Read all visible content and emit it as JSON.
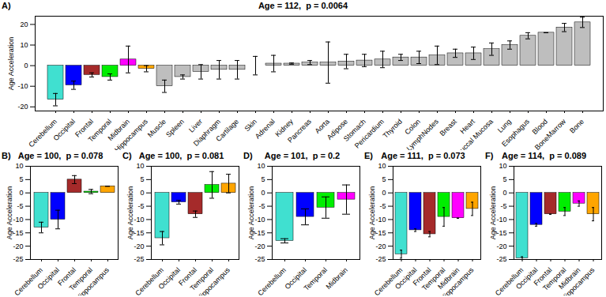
{
  "chart_data": [
    {
      "type": "bar",
      "annotation": "A)",
      "title": "Age = 112,  p = 0.0064",
      "y_label": "Age Acceleration",
      "categories": [
        "Cerebellum",
        "Occipital",
        "Frontal",
        "Temporal",
        "Midbrain",
        "Hippocampus",
        "Muscle",
        "Spleen",
        "Liver",
        "Diaphragm",
        "Cartilage",
        "Skin",
        "Adrenal",
        "Kidney",
        "Pancreas",
        "Aorta",
        "Adipose",
        "Stomach",
        "Pericardium",
        "Thyroid",
        "Colon",
        "LymphNodes",
        "Breast",
        "Heart",
        "Buccal Mucosa",
        "Lung",
        "Esophagus",
        "Blood",
        "BoneMarrow",
        "Bone"
      ],
      "values": [
        -16.5,
        -9.5,
        -4.5,
        -5.5,
        3,
        -1.5,
        -10,
        -5.5,
        -3,
        -2,
        -2,
        0,
        1,
        1,
        1.5,
        1.5,
        2,
        2.5,
        3,
        4,
        4,
        5,
        6,
        6,
        8,
        10,
        14.5,
        16,
        18.5,
        21
      ],
      "errors": [
        3,
        2,
        1,
        1.5,
        6.5,
        1.5,
        3,
        1,
        3.5,
        4.5,
        4.5,
        4.5,
        4,
        0.3,
        1,
        10,
        3.5,
        3,
        4,
        1.5,
        3,
        4.5,
        2,
        3,
        3,
        2,
        1.5,
        0,
        2,
        2.5
      ],
      "colors": [
        "#40E0D0",
        "#0000FF",
        "#A52A2A",
        "#00EE00",
        "#FF00FF",
        "#FFA500",
        "#BEBEBE",
        "#BEBEBE",
        "#BEBEBE",
        "#BEBEBE",
        "#BEBEBE",
        "#BEBEBE",
        "#BEBEBE",
        "#BEBEBE",
        "#BEBEBE",
        "#BEBEBE",
        "#BEBEBE",
        "#BEBEBE",
        "#BEBEBE",
        "#BEBEBE",
        "#BEBEBE",
        "#BEBEBE",
        "#BEBEBE",
        "#BEBEBE",
        "#BEBEBE",
        "#BEBEBE",
        "#BEBEBE",
        "#BEBEBE",
        "#BEBEBE",
        "#BEBEBE"
      ],
      "ylim": [
        -22,
        24
      ],
      "yticks": [
        -20,
        -10,
        0,
        10,
        20
      ]
    },
    {
      "type": "bar",
      "annotation": "B)",
      "title": "Age = 100,  p = 0.078",
      "y_label": "Age Acceleration",
      "categories": [
        "Cerebellum",
        "Occipital",
        "Frontal",
        "Temporal",
        "Hippocampus"
      ],
      "values": [
        -13,
        -10,
        5,
        0.5,
        2.5
      ],
      "errors": [
        2,
        3.5,
        1.5,
        0.8,
        0
      ],
      "colors": [
        "#40E0D0",
        "#0000FF",
        "#A52A2A",
        "#00EE00",
        "#FFA500"
      ],
      "ylim": [
        -25,
        10
      ],
      "yticks": [
        -25,
        -20,
        -15,
        -10,
        -5,
        0,
        5,
        10
      ]
    },
    {
      "type": "bar",
      "annotation": "C)",
      "title": "Age = 100,  p = 0.081",
      "y_label": "Age Acceleration",
      "categories": [
        "Cerebellum",
        "Occipital",
        "Frontal",
        "Temporal",
        "Hippocampus"
      ],
      "values": [
        -17,
        -3.5,
        -8,
        3,
        3.5
      ],
      "errors": [
        2.5,
        0.7,
        1.2,
        5,
        3.5
      ],
      "colors": [
        "#40E0D0",
        "#0000FF",
        "#A52A2A",
        "#00EE00",
        "#FFA500"
      ],
      "ylim": [
        -25,
        10
      ],
      "yticks": [
        -25,
        -20,
        -15,
        -10,
        -5,
        0,
        5,
        10
      ]
    },
    {
      "type": "bar",
      "annotation": "D)",
      "title": "Age = 101,  p = 0.2",
      "y_label": "Age Acceleration",
      "categories": [
        "Cerebellum",
        "Occipital",
        "Temporal",
        "Midbrain"
      ],
      "values": [
        -18,
        -9,
        -5.5,
        -2.5
      ],
      "errors": [
        0.8,
        3,
        4,
        5.5
      ],
      "colors": [
        "#40E0D0",
        "#0000FF",
        "#00EE00",
        "#FF00FF"
      ],
      "ylim": [
        -25,
        10
      ],
      "yticks": [
        -25,
        -20,
        -15,
        -10,
        -5,
        0,
        5,
        10
      ]
    },
    {
      "type": "bar",
      "annotation": "E)",
      "title": "Age = 111,  p = 0.073",
      "y_label": "Age Acceleration",
      "categories": [
        "Cerebellum",
        "Occipital",
        "Frontal",
        "Temporal",
        "Midbrain",
        "Hippocampus"
      ],
      "values": [
        -23,
        -14,
        -15.5,
        -9,
        -9.5,
        -6
      ],
      "errors": [
        1.5,
        0.5,
        1,
        3.5,
        0,
        2.5
      ],
      "colors": [
        "#40E0D0",
        "#0000FF",
        "#A52A2A",
        "#00EE00",
        "#FF00FF",
        "#FFA500"
      ],
      "ylim": [
        -25,
        10
      ],
      "yticks": [
        -25,
        -20,
        -15,
        -10,
        -5,
        0,
        5,
        10
      ]
    },
    {
      "type": "bar",
      "annotation": "F)",
      "title": "Age = 114,  p = 0.089",
      "y_label": "Age Acceleration",
      "categories": [
        "Cerebellum",
        "Occipital",
        "Frontal",
        "Temporal",
        "Midbrain",
        "Hippocampus"
      ],
      "values": [
        -24.5,
        -12,
        -8,
        -7,
        -4,
        -8
      ],
      "errors": [
        0.5,
        0.5,
        0,
        1.5,
        1,
        2.5
      ],
      "colors": [
        "#40E0D0",
        "#0000FF",
        "#A52A2A",
        "#00EE00",
        "#FF00FF",
        "#FFA500"
      ],
      "ylim": [
        -25,
        10
      ],
      "yticks": [
        -25,
        -20,
        -15,
        -10,
        -5,
        0,
        5,
        10
      ]
    }
  ]
}
